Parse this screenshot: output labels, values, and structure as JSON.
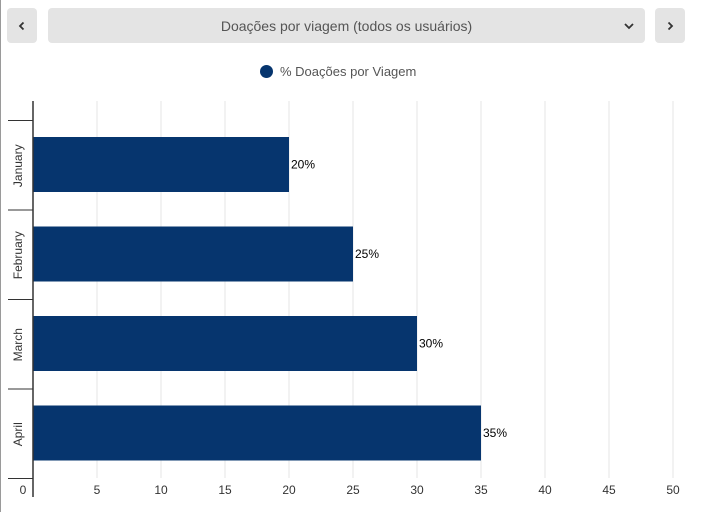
{
  "header": {
    "prev_label": "previous",
    "next_label": "next",
    "selector_label": "Doações por viagem (todos os usuários)"
  },
  "colors": {
    "bar": "#06356e",
    "grid": "#e6e6e6",
    "axis": "#333333",
    "button_bg": "#e4e4e4"
  },
  "icons": {
    "prev": "chevron-left-icon",
    "next": "chevron-right-icon",
    "dropdown": "chevron-down-icon"
  },
  "chart_data": {
    "type": "bar",
    "orientation": "horizontal",
    "categories": [
      "January",
      "February",
      "March",
      "April"
    ],
    "series": [
      {
        "name": "% Doações por Viagem",
        "values": [
          20,
          25,
          30,
          35
        ]
      }
    ],
    "data_labels": [
      "20%",
      "25%",
      "30%",
      "35%"
    ],
    "xlim": [
      0,
      50
    ],
    "xticks": [
      0,
      5,
      10,
      15,
      20,
      25,
      30,
      35,
      40,
      45,
      50
    ],
    "grid": true,
    "legend_position": "top-center"
  }
}
